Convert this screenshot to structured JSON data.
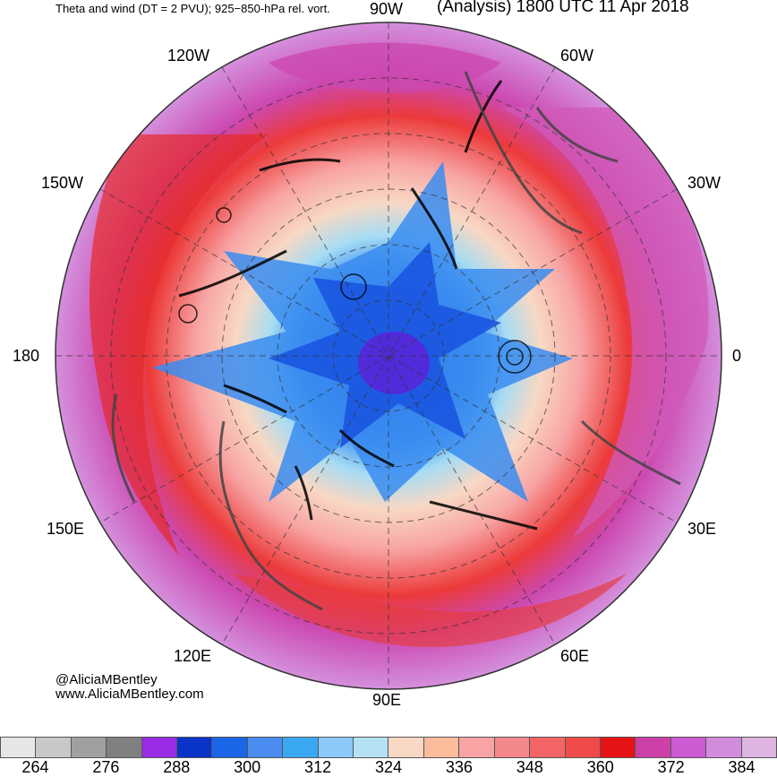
{
  "header": {
    "left_title": "Theta and wind (DT = 2 PVU); 925−850-hPa rel. vort.",
    "right_title": "(Analysis) 1800 UTC 11 Apr 2018"
  },
  "longitude_labels": {
    "top": "90W",
    "upper_left": "120W",
    "upper_right": "60W",
    "left_high": "150W",
    "right_high": "30W",
    "left": "180",
    "right": "0",
    "left_low": "150E",
    "right_low": "30E",
    "lower_left": "120E",
    "lower_right": "60E",
    "bottom": "90E"
  },
  "credits": {
    "handle": "@AliciaMBentley",
    "website": "www.AliciaMBentley.com"
  },
  "colorbar": {
    "colors": [
      "#e6e6e6",
      "#c8c8c8",
      "#a0a0a0",
      "#808080",
      "#9a2be6",
      "#0a33c8",
      "#1a66e6",
      "#4a8cf0",
      "#3aa8f0",
      "#8cc8f8",
      "#b4e2f4",
      "#f8d8c4",
      "#fcbc9c",
      "#f8a4a4",
      "#f4878c",
      "#f46464",
      "#f04a4a",
      "#e61414",
      "#cc40a8",
      "#cc5ad2",
      "#d28cdc",
      "#deb4e0"
    ],
    "tick_labels": [
      "264",
      "276",
      "288",
      "300",
      "312",
      "324",
      "336",
      "348",
      "360",
      "372",
      "384"
    ]
  }
}
